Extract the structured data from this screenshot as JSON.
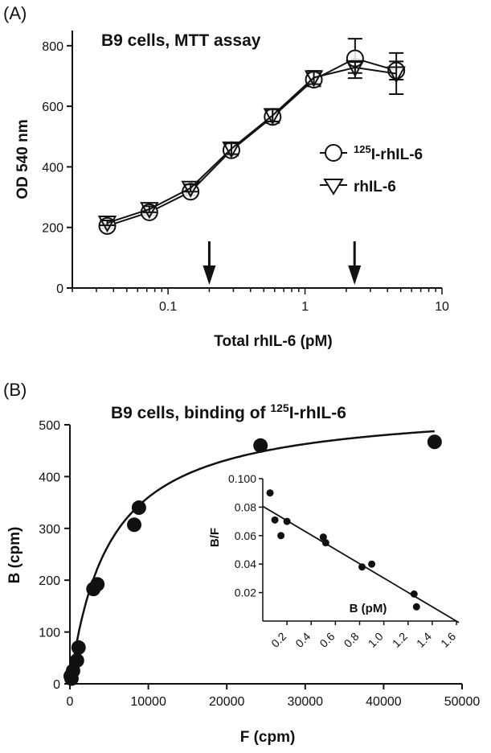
{
  "chart_data": [
    {
      "panel": "(A)",
      "type": "line",
      "title": "B9 cells, MTT assay",
      "xlabel": "Total rhIL-6 (pM)",
      "ylabel": "OD 540 nm",
      "xscale": "log",
      "xlim": [
        0.02,
        10
      ],
      "ylim": [
        0,
        850
      ],
      "xticks": [
        "0.1",
        "1",
        "10"
      ],
      "yticks": [
        "0",
        "200",
        "400",
        "600",
        "800"
      ],
      "x": [
        0.036,
        0.073,
        0.146,
        0.29,
        0.58,
        1.16,
        2.32,
        4.64
      ],
      "series": [
        {
          "name_prefix": "125",
          "name": "I-rhIL-6",
          "marker": "circle",
          "values": [
            205,
            250,
            318,
            455,
            565,
            688,
            758,
            718
          ],
          "errors": [
            8,
            10,
            12,
            18,
            20,
            22,
            65,
            30
          ]
        },
        {
          "name": "rhIL-6",
          "marker": "triangle-down",
          "values": [
            215,
            260,
            330,
            460,
            570,
            695,
            728,
            708
          ],
          "errors": [
            8,
            10,
            12,
            18,
            20,
            22,
            18,
            68
          ]
        }
      ],
      "arrows_at": [
        0.2,
        2.3
      ],
      "legend": "right"
    },
    {
      "panel": "(B)",
      "type": "scatter",
      "title_prefix": "B9 cells, binding of ",
      "title_sup": "125",
      "title_suffix": "I-rhIL-6",
      "xlabel": "F (cpm)",
      "ylabel": "B (cpm)",
      "xlim": [
        0,
        50000
      ],
      "ylim": [
        0,
        500
      ],
      "xticks": [
        "0",
        "10000",
        "20000",
        "30000",
        "40000",
        "50000"
      ],
      "yticks": [
        "0",
        "100",
        "200",
        "300",
        "400",
        "500"
      ],
      "points": [
        {
          "x": 100,
          "y": 15
        },
        {
          "x": 200,
          "y": 10
        },
        {
          "x": 400,
          "y": 25
        },
        {
          "x": 900,
          "y": 45
        },
        {
          "x": 1100,
          "y": 70
        },
        {
          "x": 3000,
          "y": 183
        },
        {
          "x": 3500,
          "y": 192
        },
        {
          "x": 8200,
          "y": 307
        },
        {
          "x": 8800,
          "y": 340
        },
        {
          "x": 24300,
          "y": 460
        },
        {
          "x": 46500,
          "y": 467
        }
      ],
      "fit": {
        "Bmax": 540,
        "Kd": 5000
      },
      "inset": {
        "type": "scatter",
        "xlabel": "B (pM)",
        "ylabel": "B/F",
        "xlim": [
          0,
          1.6
        ],
        "ylim": [
          0,
          0.1
        ],
        "xticks": [
          "0.2",
          "0.4",
          "0.6",
          "0.8",
          "1.0",
          "1.2",
          "1.4",
          "1.6"
        ],
        "yticks": [
          "0.02",
          "0.04",
          "0.06",
          "0.08",
          "0.100"
        ],
        "points": [
          {
            "x": 0.06,
            "y": 0.09
          },
          {
            "x": 0.1,
            "y": 0.071
          },
          {
            "x": 0.15,
            "y": 0.06
          },
          {
            "x": 0.2,
            "y": 0.07
          },
          {
            "x": 0.5,
            "y": 0.059
          },
          {
            "x": 0.52,
            "y": 0.055
          },
          {
            "x": 0.82,
            "y": 0.038
          },
          {
            "x": 0.9,
            "y": 0.04
          },
          {
            "x": 1.25,
            "y": 0.019
          },
          {
            "x": 1.27,
            "y": 0.01
          }
        ],
        "fit": {
          "slope": -0.0504,
          "intercept": 0.0806
        }
      }
    }
  ]
}
